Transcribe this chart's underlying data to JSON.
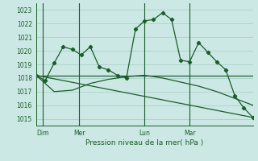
{
  "bg_color": "#cce8e4",
  "grid_color": "#aacfcb",
  "line_color": "#1a5c2a",
  "title": "Pression niveau de la mer( hPa )",
  "ylim": [
    1014.5,
    1023.5
  ],
  "yticks": [
    1015,
    1016,
    1017,
    1018,
    1019,
    1020,
    1021,
    1022,
    1023
  ],
  "day_labels": [
    "Dim",
    "Mer",
    "Lun",
    "Mar"
  ],
  "vline_x": [
    0.03,
    0.2,
    0.51,
    0.72
  ],
  "xlim": [
    0,
    48
  ],
  "line1_x": [
    0,
    2,
    4,
    6,
    8,
    10,
    12,
    14,
    16,
    18,
    20,
    22,
    24,
    26,
    28,
    30,
    32,
    34,
    36,
    38,
    40,
    42,
    44,
    46,
    48
  ],
  "line1_y": [
    1018.2,
    1017.8,
    1019.1,
    1020.3,
    1020.1,
    1019.7,
    1020.3,
    1018.8,
    1018.6,
    1018.2,
    1018.0,
    1021.6,
    1022.2,
    1022.3,
    1022.8,
    1022.3,
    1019.3,
    1019.2,
    1020.6,
    1019.9,
    1019.2,
    1018.6,
    1016.7,
    1015.8,
    1015.1
  ],
  "line2_x": [
    0,
    4,
    8,
    12,
    16,
    20,
    24,
    28,
    32,
    36,
    40,
    44,
    48
  ],
  "line2_y": [
    1018.2,
    1017.0,
    1017.1,
    1017.6,
    1017.9,
    1018.1,
    1018.2,
    1018.0,
    1017.7,
    1017.4,
    1017.0,
    1016.5,
    1016.0
  ],
  "line3_x": [
    0,
    48
  ],
  "line3_y": [
    1018.2,
    1018.2
  ],
  "line4_x": [
    0,
    48
  ],
  "line4_y": [
    1018.2,
    1015.1
  ],
  "vline_xdata": [
    1.5,
    9.5,
    24,
    34
  ]
}
